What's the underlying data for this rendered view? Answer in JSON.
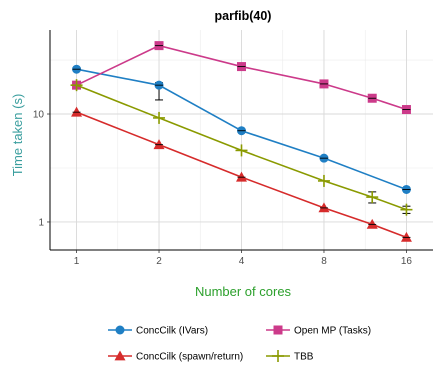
{
  "chart_data": {
    "type": "line",
    "title": "parfib(40)",
    "xlabel": "Number of cores",
    "ylabel": "Time taken (s)",
    "x_scale": "log2",
    "y_scale": "log10",
    "x_ticks": [
      1,
      2,
      4,
      8,
      16
    ],
    "y_ticks": [
      1,
      10
    ],
    "xlim": [
      0.8,
      20
    ],
    "ylim": [
      0.55,
      60
    ],
    "grid": true,
    "legend_position": "bottom",
    "series": [
      {
        "name": "ConcCilk (IVars)",
        "color": "#1f7fc4",
        "marker": "circle",
        "x": [
          1,
          2,
          4,
          8,
          16
        ],
        "y": [
          26,
          18.5,
          7,
          3.9,
          2.0
        ],
        "err_low": [
          26,
          13.5,
          7,
          3.9,
          2.0
        ],
        "err_high": [
          26,
          19.5,
          7,
          3.9,
          2.0
        ]
      },
      {
        "name": "ConcCilk (spawn/return)",
        "color": "#d62b2b",
        "marker": "triangle",
        "x": [
          1,
          2,
          4,
          8,
          12,
          16
        ],
        "y": [
          10.4,
          5.2,
          2.6,
          1.35,
          0.95,
          0.72
        ],
        "err_low": [
          10.4,
          5.2,
          2.6,
          1.35,
          0.95,
          0.72
        ],
        "err_high": [
          10.4,
          5.2,
          2.6,
          1.35,
          0.95,
          0.72
        ]
      },
      {
        "name": "Open MP (Tasks)",
        "color": "#cc3a8a",
        "marker": "square",
        "x": [
          1,
          2,
          4,
          8,
          12,
          16
        ],
        "y": [
          18.5,
          43,
          27.5,
          19,
          14,
          11
        ],
        "err_low": [
          18.5,
          42,
          27,
          18.5,
          13.5,
          10.5
        ],
        "err_high": [
          18.5,
          44,
          28,
          19.5,
          14.5,
          11.5
        ]
      },
      {
        "name": "TBB",
        "color": "#8a9a00",
        "marker": "plus",
        "x": [
          1,
          2,
          4,
          8,
          12,
          16
        ],
        "y": [
          18.5,
          9.2,
          4.6,
          2.4,
          1.7,
          1.3
        ],
        "err_low": [
          18.5,
          9.2,
          4.6,
          2.4,
          1.5,
          1.2
        ],
        "err_high": [
          18.5,
          9.2,
          4.6,
          2.4,
          1.9,
          1.4
        ]
      }
    ]
  },
  "legend": {
    "items": [
      {
        "label": "ConcCilk (IVars)",
        "series_index": 0
      },
      {
        "label": "Open MP (Tasks)",
        "series_index": 2
      },
      {
        "label": "ConcCilk (spawn/return)",
        "series_index": 1
      },
      {
        "label": "TBB",
        "series_index": 3
      }
    ]
  }
}
